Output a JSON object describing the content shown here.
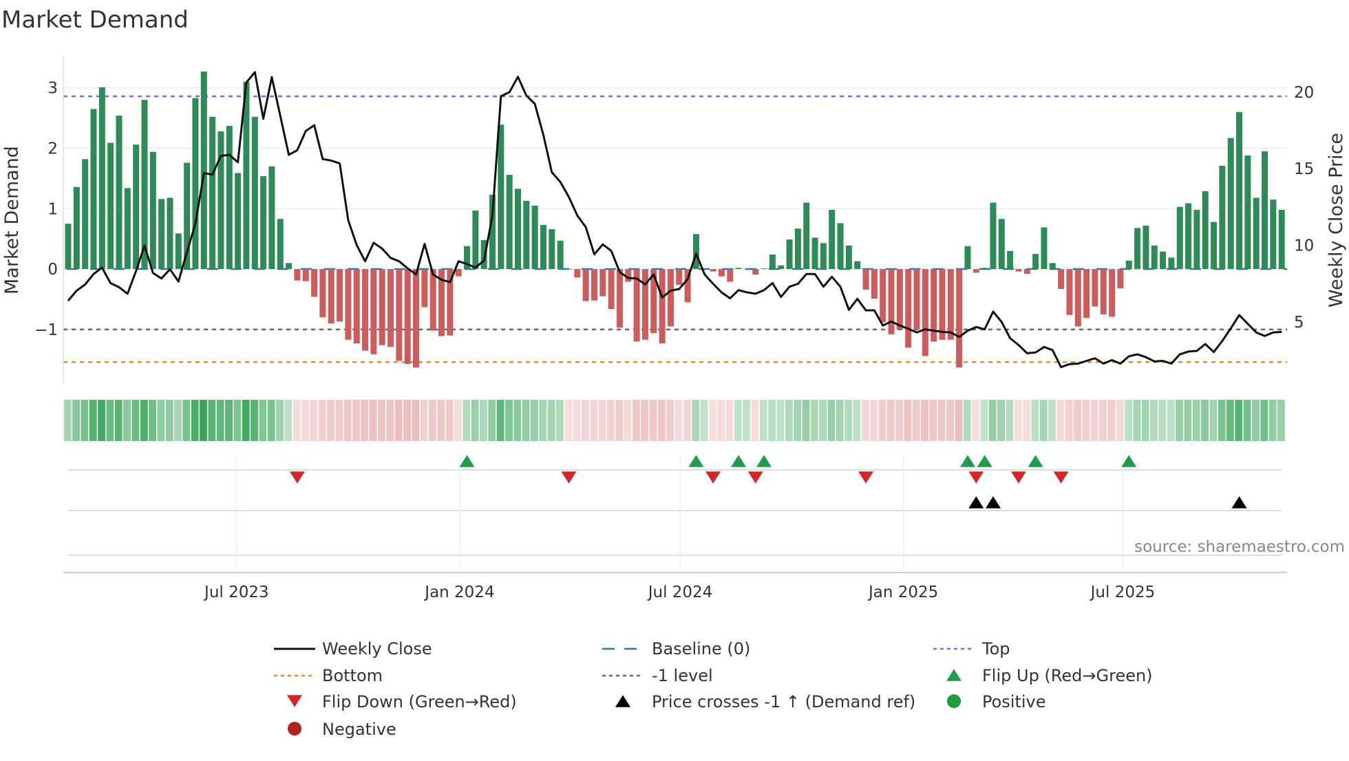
{
  "chart_data": {
    "type": "bar",
    "title": "Market Demand",
    "ylabel": "Market Demand",
    "y2label": "Weekly Close Price",
    "source": "source: sharemaestro.com",
    "start_week": "2023-02-12",
    "frequency": "weekly",
    "ylim": [
      -1.89,
      3.52
    ],
    "y2lim": [
      1.0,
      22.33
    ],
    "yticks": [
      {
        "v": 3,
        "label": "3"
      },
      {
        "v": 2,
        "label": "2"
      },
      {
        "v": 1,
        "label": "1"
      },
      {
        "v": 0,
        "label": "0"
      },
      {
        "v": -1,
        "label": "−1"
      }
    ],
    "y2ticks": [
      {
        "v": 5,
        "label": "5"
      },
      {
        "v": 10,
        "label": "10"
      },
      {
        "v": 15,
        "label": "15"
      },
      {
        "v": 20,
        "label": "20"
      }
    ],
    "xticks": [
      {
        "date": "2023-07-01",
        "label": "Jul 2023"
      },
      {
        "date": "2024-01-01",
        "label": "Jan 2024"
      },
      {
        "date": "2024-07-01",
        "label": "Jul 2024"
      },
      {
        "date": "2025-01-01",
        "label": "Jan 2025"
      },
      {
        "date": "2025-07-01",
        "label": "Jul 2025"
      }
    ],
    "levels": {
      "top": 2.86,
      "bottom": -1.54,
      "minus_one": -1,
      "baseline": 0
    },
    "demand": [
      0.75,
      1.36,
      1.82,
      2.65,
      3.01,
      2.09,
      2.54,
      1.34,
      2.06,
      2.8,
      1.94,
      1.16,
      1.18,
      0.59,
      1.76,
      2.83,
      3.27,
      2.52,
      2.28,
      2.37,
      1.59,
      3.1,
      2.52,
      1.54,
      1.7,
      0.83,
      0.1,
      -0.19,
      -0.2,
      -0.46,
      -0.8,
      -0.9,
      -0.87,
      -1.17,
      -1.23,
      -1.35,
      -1.41,
      -1.26,
      -1.29,
      -1.52,
      -1.57,
      -1.63,
      -0.63,
      -1.02,
      -1.11,
      -1.1,
      -0.12,
      0.38,
      0.97,
      0.48,
      1.23,
      2.39,
      1.56,
      1.33,
      1.13,
      1.05,
      0.73,
      0.66,
      0.47,
      -0.01,
      -0.14,
      -0.53,
      -0.52,
      -0.45,
      -0.66,
      -0.97,
      -0.21,
      -1.2,
      -1.17,
      -1.06,
      -1.23,
      -0.95,
      -0.26,
      -0.55,
      0.58,
      0.0,
      -0.04,
      -0.12,
      -0.21,
      0.02,
      0.0,
      -0.09,
      0.01,
      0.24,
      0.06,
      0.49,
      0.67,
      1.1,
      0.52,
      0.43,
      0.98,
      0.76,
      0.39,
      0.13,
      -0.34,
      -0.49,
      -0.88,
      -1.08,
      -1.0,
      -1.3,
      -1.0,
      -1.44,
      -1.2,
      -1.17,
      -1.17,
      -1.63,
      0.38,
      -0.06,
      0.02,
      1.1,
      0.83,
      0.3,
      -0.04,
      -0.08,
      0.25,
      0.69,
      0.1,
      -0.33,
      -0.76,
      -0.95,
      -0.81,
      -0.62,
      -0.75,
      -0.79,
      -0.32,
      0.14,
      0.68,
      0.72,
      0.39,
      0.29,
      0.19,
      1.03,
      1.09,
      0.98,
      1.29,
      0.78,
      1.71,
      2.17,
      2.6,
      1.88,
      1.18,
      1.95,
      1.15,
      0.98
    ],
    "price": [
      6.39,
      7.04,
      7.45,
      8.13,
      8.54,
      7.53,
      7.27,
      6.84,
      8.32,
      9.98,
      8.2,
      7.84,
      8.44,
      7.64,
      9.56,
      11.42,
      14.71,
      14.62,
      15.83,
      15.91,
      15.42,
      20.63,
      21.3,
      18.26,
      20.98,
      18.44,
      15.91,
      16.21,
      17.46,
      17.84,
      15.63,
      15.53,
      15.35,
      11.65,
      10.02,
      8.96,
      10.17,
      9.79,
      9.18,
      8.96,
      8.5,
      8.1,
      10.1,
      8.1,
      7.75,
      7.6,
      8.96,
      8.78,
      8.55,
      9.0,
      11.95,
      19.73,
      20.0,
      21.0,
      19.77,
      19.23,
      17.2,
      14.77,
      14.14,
      13.16,
      11.95,
      11.19,
      9.41,
      10.06,
      9.64,
      8.25,
      7.87,
      7.84,
      7.45,
      8.1,
      6.59,
      7.04,
      7.15,
      7.8,
      9.46,
      8.1,
      7.49,
      6.93,
      6.54,
      7.08,
      6.93,
      6.84,
      7.08,
      7.54,
      6.63,
      7.3,
      7.49,
      8.13,
      8.13,
      7.3,
      7.95,
      7.3,
      5.79,
      6.51,
      5.76,
      5.76,
      4.77,
      5.03,
      4.77,
      4.55,
      4.32,
      4.52,
      4.43,
      4.35,
      4.32,
      4.02,
      4.43,
      4.67,
      4.52,
      5.68,
      5.0,
      3.94,
      3.49,
      2.96,
      3.01,
      3.37,
      3.16,
      2.05,
      2.25,
      2.28,
      2.46,
      2.63,
      2.28,
      2.51,
      2.28,
      2.76,
      2.89,
      2.7,
      2.43,
      2.46,
      2.28,
      2.89,
      3.07,
      3.11,
      3.56,
      3.04,
      3.76,
      4.58,
      5.45,
      4.88,
      4.32,
      4.09,
      4.32,
      4.35
    ],
    "flip_up_weeks": [
      47,
      74,
      79,
      82,
      106,
      108,
      114,
      125
    ],
    "flip_down_weeks": [
      27,
      59,
      76,
      81,
      94,
      107,
      112,
      117
    ],
    "price_cross_weeks": [
      107,
      109,
      138
    ],
    "legend": [
      {
        "key": "weekly_close",
        "label": "Weekly Close",
        "icon": "solid-line",
        "color": "#111111"
      },
      {
        "key": "baseline",
        "label": "Baseline (0)",
        "icon": "dashed-line",
        "color": "#1f77b4"
      },
      {
        "key": "top",
        "label": "Top",
        "icon": "dotted-line",
        "color": "#7b68ee"
      },
      {
        "key": "bottom",
        "label": "Bottom",
        "icon": "dotted-line",
        "color": "#e8892b"
      },
      {
        "key": "minus_one",
        "label": "-1 level",
        "icon": "dotted-line",
        "color": "#666666"
      },
      {
        "key": "flip_up",
        "label": "Flip Up (Red→Green)",
        "icon": "triangle-up",
        "color": "#1e9e4a"
      },
      {
        "key": "flip_down",
        "label": "Flip Down (Green→Red)",
        "icon": "triangle-down",
        "color": "#d62728"
      },
      {
        "key": "price_cross",
        "label": "Price crosses -1 ↑ (Demand ref)",
        "icon": "triangle-up",
        "color": "#000000"
      },
      {
        "key": "positive",
        "label": "Positive",
        "icon": "circle",
        "color": "#1e9e3a"
      },
      {
        "key": "negative",
        "label": "Negative",
        "icon": "circle",
        "color": "#b22222"
      }
    ],
    "legend_placement": "bottom",
    "colors": {
      "positive": "#2e8b57",
      "negative": "#cd5c5c"
    }
  }
}
